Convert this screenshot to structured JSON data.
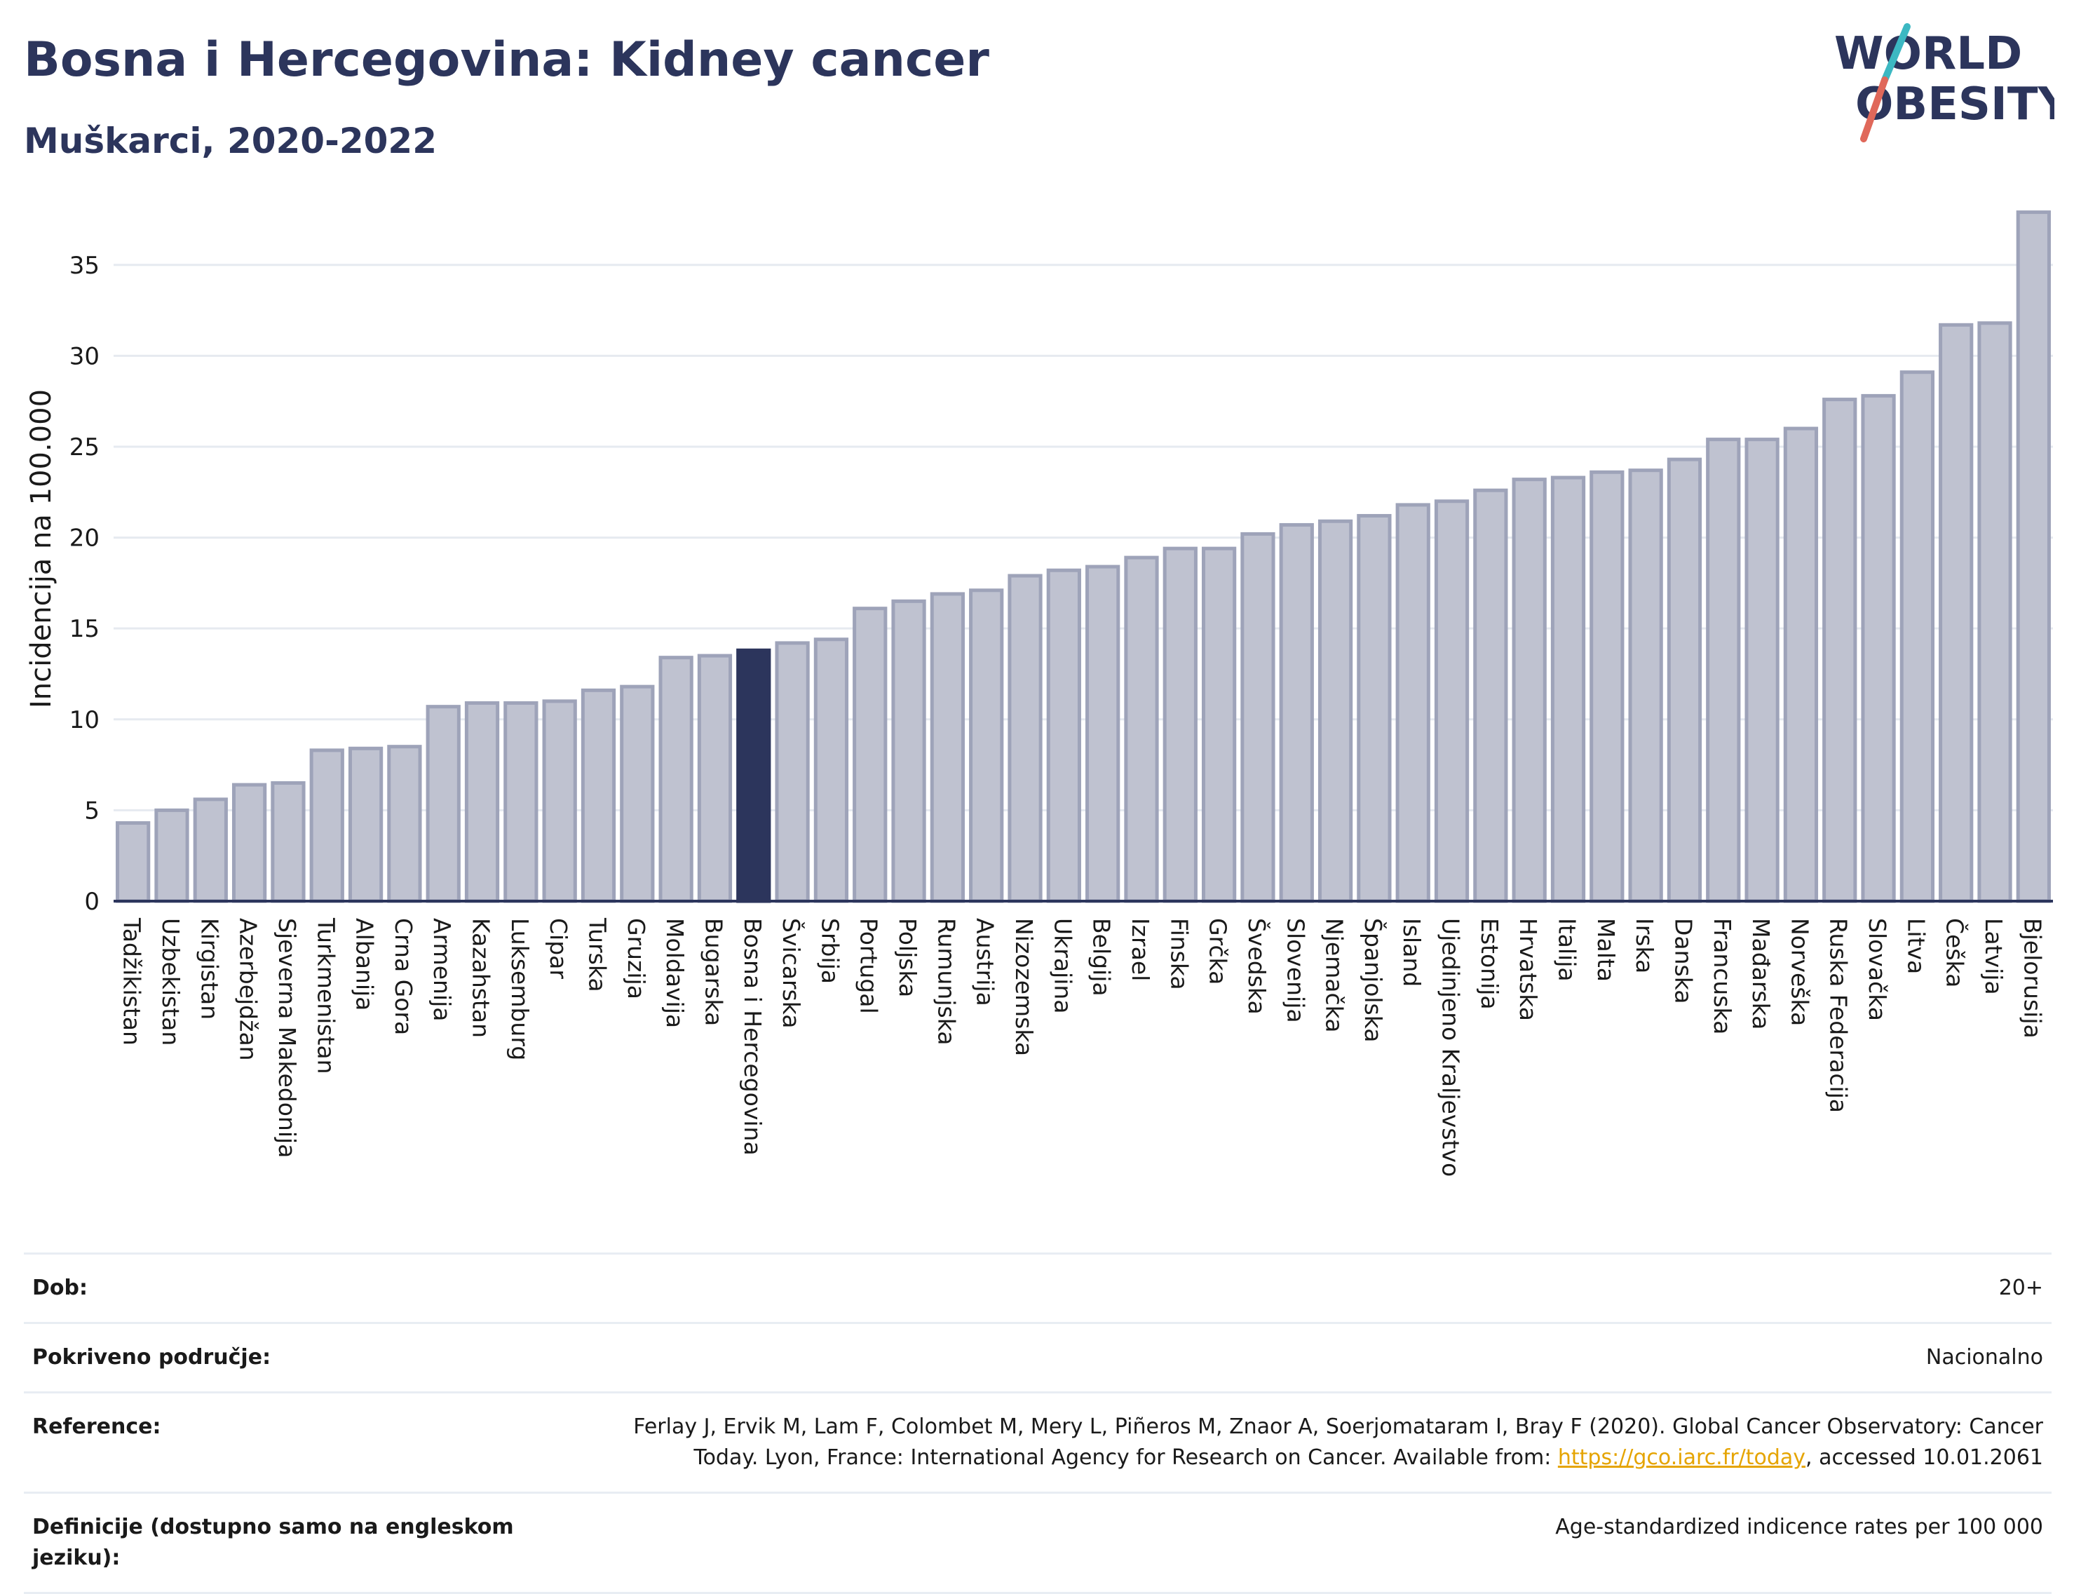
{
  "title": "Bosna i Hercegovina: Kidney cancer",
  "subtitle": "Muškarci, 2020-2022",
  "logo": {
    "line1": "WORLD",
    "line2": "OBESITY",
    "colors": {
      "text": "#2c355c",
      "slash_teal": "#3cb8c2",
      "slash_red": "#e0685a"
    }
  },
  "colors": {
    "bar": "#bfc2d0",
    "bar_stroke": "#9ea3b9",
    "highlight": "#2c355c",
    "grid": "#e6eaf0",
    "axis": "#2c355c",
    "link": "#e5a400"
  },
  "chart_data": {
    "type": "bar",
    "ylabel": "Incidencija na 100.000",
    "ylim": [
      0,
      38
    ],
    "yticks": [
      0,
      5,
      10,
      15,
      20,
      25,
      30,
      35
    ],
    "grid": true,
    "highlight": "Bosna i Hercegovina",
    "categories": [
      "Tadžikistan",
      "Uzbekistan",
      "Kirgistan",
      "Azerbejdžan",
      "Sjeverna Makedonija",
      "Turkmenistan",
      "Albanija",
      "Crna Gora",
      "Armenija",
      "Kazahstan",
      "Luksemburg",
      "Cipar",
      "Turska",
      "Gruzija",
      "Moldavija",
      "Bugarska",
      "Bosna i Hercegovina",
      "Švicarska",
      "Srbija",
      "Portugal",
      "Poljska",
      "Rumunjska",
      "Austrija",
      "Nizozemska",
      "Ukrajina",
      "Belgija",
      "Izrael",
      "Finska",
      "Grčka",
      "Švedska",
      "Slovenija",
      "Njemačka",
      "Španjolska",
      "Island",
      "Ujedinjeno Kraljevstvo",
      "Estonija",
      "Hrvatska",
      "Italija",
      "Malta",
      "Irska",
      "Danska",
      "Francuska",
      "Mađarska",
      "Norveška",
      "Ruska Federacija",
      "Slovačka",
      "Litva",
      "Češka",
      "Latvija",
      "Bjelorusija"
    ],
    "values": [
      4.3,
      5.0,
      5.6,
      6.4,
      6.5,
      8.3,
      8.4,
      8.5,
      10.7,
      10.9,
      10.9,
      11.0,
      11.6,
      11.8,
      13.4,
      13.5,
      13.8,
      14.2,
      14.4,
      16.1,
      16.5,
      16.9,
      17.1,
      17.9,
      18.2,
      18.4,
      18.9,
      19.4,
      19.4,
      20.2,
      20.7,
      20.9,
      21.2,
      21.8,
      22.0,
      22.6,
      23.2,
      23.3,
      23.6,
      23.7,
      24.3,
      25.4,
      25.4,
      26.0,
      27.6,
      27.8,
      29.1,
      31.7,
      31.8,
      37.9
    ]
  },
  "info": [
    {
      "label": "Dob:",
      "value": "20+"
    },
    {
      "label": "Pokriveno područje:",
      "value": "Nacionalno"
    },
    {
      "label": "Reference:",
      "value_pre": "Ferlay J, Ervik M, Lam F, Colombet M, Mery L, Piñeros M, Znaor A, Soerjomataram I, Bray F (2020). Global Cancer Observatory: Cancer Today. Lyon, France: International Agency for Research on Cancer. Available from: ",
      "link": "https://gco.iarc.fr/today",
      "value_post": ", accessed 10.01.2061"
    },
    {
      "label": "Definicije (dostupno samo na engleskom jeziku):",
      "value": "Age-standardized indicence rates per 100 000"
    }
  ]
}
